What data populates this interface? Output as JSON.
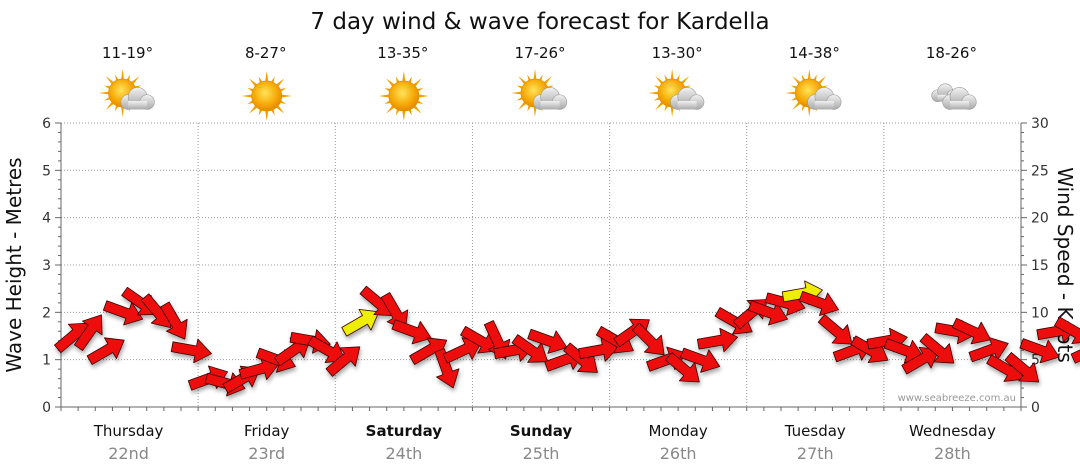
{
  "chart_data": {
    "type": "line",
    "title": "7 day wind & wave forecast for Kardella",
    "ylabel": "Wave Height - Metres",
    "y2label": "Wind Speed - Knots",
    "ylim": [
      0,
      6
    ],
    "y2lim": [
      0,
      30
    ],
    "yticks": [
      "0",
      "1",
      "2",
      "3",
      "4",
      "5",
      "6"
    ],
    "y2ticks": [
      "0",
      "5",
      "10",
      "15",
      "20",
      "25",
      "30"
    ],
    "grid": true,
    "watermark": "www.seabreeze.com.au",
    "days": [
      {
        "name": "Thursday",
        "date": "22nd",
        "temp": "11-19°",
        "icon": "partly-cloudy-sun-icon",
        "bold": false
      },
      {
        "name": "Friday",
        "date": "23rd",
        "temp": "8-27°",
        "icon": "sun-icon",
        "bold": false
      },
      {
        "name": "Saturday",
        "date": "24th",
        "temp": "13-35°",
        "icon": "sun-icon",
        "bold": true
      },
      {
        "name": "Sunday",
        "date": "25th",
        "temp": "17-26°",
        "icon": "partly-cloudy-sun-icon",
        "bold": true
      },
      {
        "name": "Monday",
        "date": "26th",
        "temp": "13-30°",
        "icon": "partly-cloudy-sun-icon",
        "bold": false
      },
      {
        "name": "Tuesday",
        "date": "27th",
        "temp": "14-38°",
        "icon": "partly-cloudy-sun-icon",
        "bold": false
      },
      {
        "name": "Wednesday",
        "date": "28th",
        "temp": "18-26°",
        "icon": "cloud-icon",
        "bold": false
      }
    ],
    "series": [
      {
        "x_unit": "hours from start of Thursday 22nd",
        "wind_knots_every_3h": [
          7.5,
          8,
          6,
          10,
          11,
          10,
          9,
          6,
          3,
          2.5,
          3,
          4,
          5,
          6,
          7,
          6,
          5,
          9,
          11,
          10,
          8,
          6,
          4,
          6,
          7,
          7,
          6,
          6,
          7,
          5,
          5,
          6,
          7,
          8,
          7,
          5,
          4,
          5,
          7,
          9,
          10,
          10,
          11,
          12,
          11,
          8,
          6,
          6,
          7,
          6,
          5,
          6,
          8,
          8,
          6,
          4,
          4,
          6,
          8,
          8,
          6
        ]
      }
    ],
    "arrow_colors": {
      "normal": "#ee1111",
      "highlight": "#eeee00"
    },
    "highlight_indices": [
      17,
      43
    ]
  }
}
